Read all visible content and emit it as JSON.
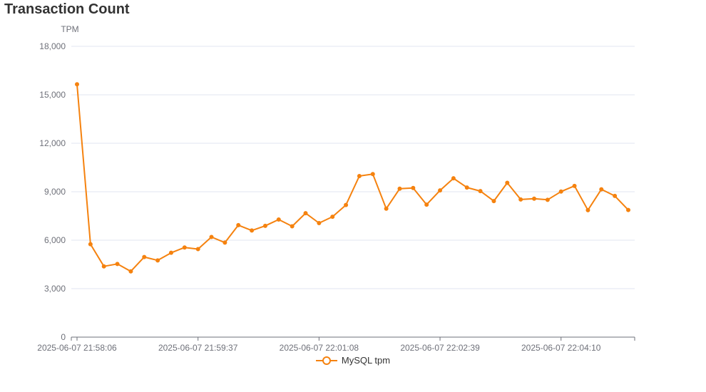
{
  "chart_data": {
    "type": "line",
    "title": "Transaction Count",
    "ylabel": "TPM",
    "ylim": [
      0,
      18000
    ],
    "yticks": [
      "0",
      "3,000",
      "6,000",
      "9,000",
      "12,000",
      "15,000",
      "18,000"
    ],
    "yticks_values": [
      0,
      3000,
      6000,
      9000,
      12000,
      15000,
      18000
    ],
    "grid": true,
    "legend_position": "bottom-center",
    "x": [
      "2025-06-07 21:58:06",
      "2025-06-07 21:58:16",
      "2025-06-07 21:58:26",
      "2025-06-07 21:58:36",
      "2025-06-07 21:58:46",
      "2025-06-07 21:58:57",
      "2025-06-07 21:59:07",
      "2025-06-07 21:59:17",
      "2025-06-07 21:59:27",
      "2025-06-07 21:59:37",
      "2025-06-07 21:59:47",
      "2025-06-07 21:59:57",
      "2025-06-07 22:00:07",
      "2025-06-07 22:00:17",
      "2025-06-07 22:00:27",
      "2025-06-07 22:00:37",
      "2025-06-07 22:00:48",
      "2025-06-07 22:00:58",
      "2025-06-07 22:01:08",
      "2025-06-07 22:01:18",
      "2025-06-07 22:01:28",
      "2025-06-07 22:01:38",
      "2025-06-07 22:01:48",
      "2025-06-07 22:01:58",
      "2025-06-07 22:02:08",
      "2025-06-07 22:02:18",
      "2025-06-07 22:02:28",
      "2025-06-07 22:02:39",
      "2025-06-07 22:02:49",
      "2025-06-07 22:02:59",
      "2025-06-07 22:03:09",
      "2025-06-07 22:03:19",
      "2025-06-07 22:03:29",
      "2025-06-07 22:03:39",
      "2025-06-07 22:03:49",
      "2025-06-07 22:03:59",
      "2025-06-07 22:04:10",
      "2025-06-07 22:04:20",
      "2025-06-07 22:04:30",
      "2025-06-07 22:04:40",
      "2025-06-07 22:04:50",
      "2025-06-07 22:05:00"
    ],
    "xtick_labels": [
      "2025-06-07 21:58:06",
      "2025-06-07 21:59:37",
      "2025-06-07 22:01:08",
      "2025-06-07 22:02:39",
      "2025-06-07 22:04:10"
    ],
    "series": [
      {
        "name": "MySQL tpm",
        "color": "#f5820f",
        "values": [
          15650,
          5750,
          4380,
          4530,
          4070,
          4960,
          4750,
          5220,
          5550,
          5450,
          6200,
          5850,
          6930,
          6600,
          6890,
          7280,
          6860,
          7670,
          7060,
          7450,
          8180,
          9970,
          10090,
          7950,
          9190,
          9230,
          8200,
          9080,
          9830,
          9260,
          9040,
          8420,
          9550,
          8520,
          8570,
          8500,
          9010,
          9360,
          7860,
          9150,
          8740,
          7870
        ]
      }
    ]
  }
}
